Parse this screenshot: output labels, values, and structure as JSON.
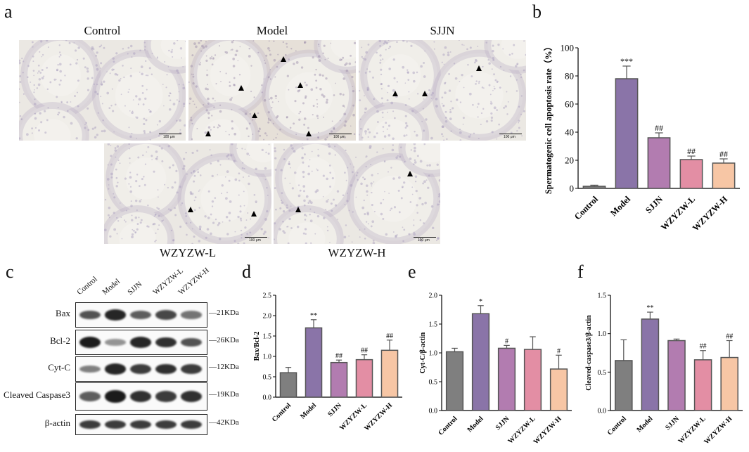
{
  "panels": {
    "a": "a",
    "b": "b",
    "c": "c",
    "d": "d",
    "e": "e",
    "f": "f"
  },
  "micrographs": {
    "scale_label": "100 μm",
    "images": [
      {
        "label": "Control",
        "arrows": 0
      },
      {
        "label": "Model",
        "arrows": 6
      },
      {
        "label": "SJJN",
        "arrows": 3
      },
      {
        "label": "WZYZW-L",
        "arrows": 2
      },
      {
        "label": "WZYZW-H",
        "arrows": 2
      }
    ]
  },
  "western_blot": {
    "lanes": [
      "Control",
      "Model",
      "SJJN",
      "WZYZW-L",
      "WZYZW-H"
    ],
    "rows": [
      {
        "protein": "Bax",
        "kda": "21KDa"
      },
      {
        "protein": "Bcl-2",
        "kda": "26KDa"
      },
      {
        "protein": "Cyt-C",
        "kda": "12KDa"
      },
      {
        "protein": "Cleaved Caspase3",
        "kda": "19KDa"
      },
      {
        "protein": "β-actin",
        "kda": "42KDa"
      }
    ]
  },
  "chart_data": [
    {
      "panel": "b",
      "type": "bar",
      "categories": [
        "Control",
        "Model",
        "SJJN",
        "WZYZW-L",
        "WZYZW-H"
      ],
      "values": [
        1.5,
        78,
        36,
        20.5,
        18
      ],
      "errors": [
        0.8,
        9,
        3.5,
        2.5,
        3
      ],
      "annotations": [
        "",
        "***",
        "##",
        "##",
        "##"
      ],
      "ylabel": "Spermatogenic cell apoptosis rate（%）",
      "ylim": [
        0,
        100
      ],
      "yticks": [
        0,
        20,
        40,
        60,
        80,
        100
      ],
      "colors": [
        "#7f7f7f",
        "#8a74a8",
        "#b27cb0",
        "#e38ea4",
        "#f7c6a5"
      ]
    },
    {
      "panel": "d",
      "type": "bar",
      "categories": [
        "Control",
        "Model",
        "SJJN",
        "WZYZW-L",
        "WZYZW-H"
      ],
      "values": [
        0.6,
        1.7,
        0.85,
        0.92,
        1.15
      ],
      "errors": [
        0.13,
        0.2,
        0.06,
        0.12,
        0.25
      ],
      "annotations": [
        "",
        "**",
        "##",
        "##",
        "##"
      ],
      "ylabel": "Bax/Bcl-2",
      "ylim": [
        0,
        2.5
      ],
      "yticks": [
        "0.0",
        "0.5",
        "1.0",
        "1.5",
        "2.0",
        "2.5"
      ],
      "colors": [
        "#7f7f7f",
        "#8a74a8",
        "#b27cb0",
        "#e38ea4",
        "#f7c6a5"
      ]
    },
    {
      "panel": "e",
      "type": "bar",
      "categories": [
        "Control",
        "Model",
        "SJJN",
        "WZYZW-L",
        "WZYZW-H"
      ],
      "values": [
        1.02,
        1.68,
        1.08,
        1.06,
        0.72
      ],
      "errors": [
        0.06,
        0.14,
        0.05,
        0.22,
        0.24
      ],
      "annotations": [
        "",
        "*",
        "#",
        "",
        "#"
      ],
      "ylabel": "Cyt-C/β-actin",
      "ylim": [
        0,
        2.0
      ],
      "yticks": [
        "0.0",
        "0.5",
        "1.0",
        "1.5",
        "2.0"
      ],
      "colors": [
        "#7f7f7f",
        "#8a74a8",
        "#b27cb0",
        "#e38ea4",
        "#f7c6a5"
      ]
    },
    {
      "panel": "f",
      "type": "bar",
      "categories": [
        "Control",
        "Model",
        "SJJN",
        "WZYZW-L",
        "WZYZW-H"
      ],
      "values": [
        0.65,
        1.19,
        0.91,
        0.66,
        0.69
      ],
      "errors": [
        0.27,
        0.09,
        0.02,
        0.12,
        0.22
      ],
      "annotations": [
        "",
        "**",
        "",
        "##",
        "##"
      ],
      "ylabel": "Cleaved-caspase3/β-actin",
      "ylim": [
        0,
        1.5
      ],
      "yticks": [
        "0.0",
        "0.5",
        "1.0",
        "1.5"
      ],
      "colors": [
        "#7f7f7f",
        "#8a74a8",
        "#b27cb0",
        "#e38ea4",
        "#f7c6a5"
      ]
    }
  ]
}
